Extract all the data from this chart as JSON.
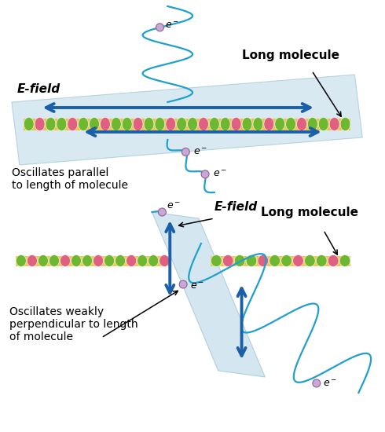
{
  "bg_color": "#ffffff",
  "plane_color": "#b8d8e8",
  "molecule_fill": "#f0c040",
  "molecule_green": "#6db830",
  "molecule_pink": "#e06080",
  "arrow_blue": "#1a5fa8",
  "wave_cyan": "#20a0cc",
  "electron_color": "#c8a8d8",
  "electron_edge": "#906090",
  "text_color": "#000000",
  "top_label_efield": "E-field",
  "top_label_molecule": "Long molecule",
  "top_label_oscillates": "Oscillates parallel\nto length of molecule",
  "bot_label_efield": "E-field",
  "bot_label_molecule": "Long molecule",
  "bot_label_oscillates": "Oscillates weakly\nperpendicular to length\nof molecule"
}
